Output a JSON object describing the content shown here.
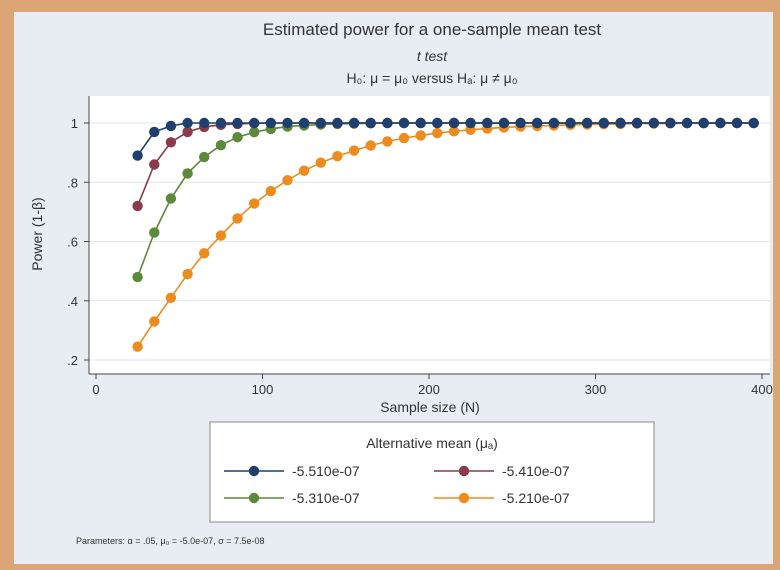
{
  "chart_data": {
    "type": "line",
    "title": "Estimated power for a one-sample mean test",
    "subtitle": "t test",
    "hypothesis": "H₀: μ = μ₀  versus  Hₐ: μ ≠ μ₀",
    "xlabel": "Sample size (N)",
    "ylabel": "Power (1-β)",
    "xlim": [
      0,
      400
    ],
    "ylim": [
      0.2,
      1
    ],
    "x_ticks": [
      "0",
      "100",
      "200",
      "300",
      "400"
    ],
    "y_ticks": [
      ".2",
      ".4",
      ".6",
      ".8",
      "1"
    ],
    "x": [
      25,
      35,
      45,
      55,
      65,
      75,
      85,
      95,
      105,
      115,
      125,
      135,
      145,
      155,
      165,
      175,
      185,
      195,
      205,
      215,
      225,
      235,
      245,
      255,
      265,
      275,
      285,
      295,
      305,
      315,
      325,
      335,
      345,
      355,
      365,
      375,
      385,
      395
    ],
    "series": [
      {
        "name": "-5.510e-07",
        "color": "#1f3f6e",
        "values": [
          0.89,
          0.97,
          0.99,
          1,
          1,
          1,
          1,
          1,
          1,
          1,
          1,
          1,
          1,
          1,
          1,
          1,
          1,
          1,
          1,
          1,
          1,
          1,
          1,
          1,
          1,
          1,
          1,
          1,
          1,
          1,
          1,
          1,
          1,
          1,
          1,
          1,
          1,
          1
        ]
      },
      {
        "name": "-5.410e-07",
        "color": "#8a3a4a",
        "values": [
          0.72,
          0.86,
          0.935,
          0.97,
          0.987,
          0.994,
          0.997,
          0.999,
          1,
          1,
          1,
          1,
          1,
          1,
          1,
          1,
          1,
          1,
          1,
          1,
          1,
          1,
          1,
          1,
          1,
          1,
          1,
          1,
          1,
          1,
          1,
          1,
          1,
          1,
          1,
          1,
          1,
          1
        ]
      },
      {
        "name": "-5.310e-07",
        "color": "#5a8a3a",
        "values": [
          0.48,
          0.63,
          0.745,
          0.83,
          0.885,
          0.925,
          0.952,
          0.969,
          0.98,
          0.988,
          0.992,
          0.995,
          0.997,
          0.998,
          0.999,
          1,
          1,
          1,
          1,
          1,
          1,
          1,
          1,
          1,
          1,
          1,
          1,
          1,
          1,
          1,
          1,
          1,
          1,
          1,
          1,
          1,
          1,
          1
        ]
      },
      {
        "name": "-5.210e-07",
        "color": "#ec8b1e",
        "values": [
          0.245,
          0.33,
          0.41,
          0.49,
          0.56,
          0.62,
          0.678,
          0.728,
          0.77,
          0.807,
          0.839,
          0.866,
          0.888,
          0.907,
          0.924,
          0.938,
          0.949,
          0.958,
          0.966,
          0.972,
          0.977,
          0.981,
          0.985,
          0.988,
          0.99,
          0.992,
          0.994,
          0.995,
          0.996,
          0.997,
          0.998,
          0.998,
          0.999,
          0.999,
          0.999,
          1,
          1,
          1
        ]
      }
    ],
    "legend": {
      "title": "Alternative mean (μₐ)",
      "position": "bottom"
    },
    "note": "Parameters: α = .05, μ₀ = -5.0e-07, σ = 7.5e-08",
    "grid": true
  }
}
